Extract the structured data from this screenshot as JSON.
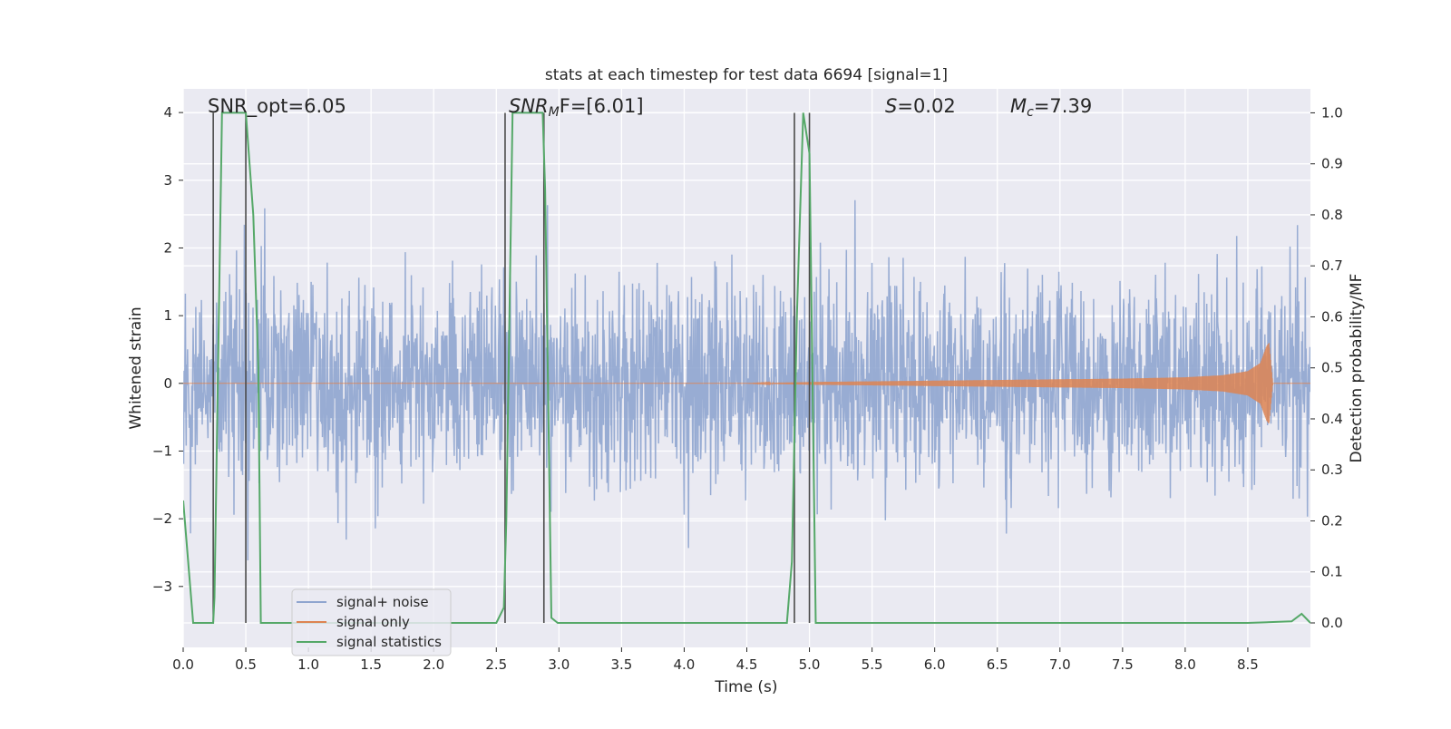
{
  "chart_data": {
    "type": "line",
    "title": "stats at each timestep for test data 6694 [signal=1]",
    "xlabel": "Time (s)",
    "ylabel": "Whitened strain",
    "y2label": "Detection probability/MF",
    "xlim": [
      0.0,
      9.0
    ],
    "ylim": [
      -3.9,
      4.35
    ],
    "y2lim": [
      -0.048,
      1.047
    ],
    "xticks": [
      "0.0",
      "0.5",
      "1.0",
      "1.5",
      "2.0",
      "2.5",
      "3.0",
      "3.5",
      "4.0",
      "4.5",
      "5.0",
      "5.5",
      "6.0",
      "6.5",
      "7.0",
      "7.5",
      "8.0",
      "8.5"
    ],
    "yticks": [
      "4",
      "3",
      "2",
      "1",
      "0",
      "−1",
      "−2",
      "−3"
    ],
    "y2ticks": [
      "1.0",
      "0.9",
      "0.8",
      "0.7",
      "0.6",
      "0.5",
      "0.4",
      "0.3",
      "0.2",
      "0.1",
      "0.0"
    ],
    "grid": true,
    "legend_position": "lower-left",
    "annotations": {
      "snr_opt": "SNR_opt=6.05",
      "snr_mf_italic": "SNR",
      "snr_mf_sub": "M",
      "snr_mf_rest": "F=[6.01]",
      "s_var": "S",
      "s_value": "=0.02",
      "mc_var": "M",
      "mc_sub": "c",
      "mc_value": "=7.39"
    },
    "series": [
      {
        "name": "signal+ noise",
        "color": "#8fa5cf",
        "noise_amplitude_std": 0.75,
        "range": [
          -3.6,
          4.0
        ]
      },
      {
        "name": "signal only",
        "color": "#dd8452",
        "envelope": {
          "t": [
            0.0,
            4.5,
            5.0,
            5.5,
            6.0,
            6.5,
            7.0,
            7.5,
            8.0,
            8.3,
            8.5,
            8.6,
            8.65,
            8.67,
            8.7,
            9.0
          ],
          "amp": [
            0.0,
            0.0,
            0.02,
            0.03,
            0.04,
            0.05,
            0.06,
            0.07,
            0.09,
            0.12,
            0.18,
            0.3,
            0.55,
            0.6,
            0.0,
            0.0
          ]
        }
      },
      {
        "name": "signal statistics",
        "color": "#55a868",
        "x": [
          0.0,
          0.08,
          0.24,
          0.25,
          0.31,
          0.5,
          0.56,
          0.6,
          0.62,
          0.8,
          2.0,
          2.5,
          2.56,
          2.58,
          2.63,
          2.87,
          2.89,
          2.94,
          2.99,
          3.5,
          4.5,
          4.82,
          4.86,
          4.9,
          4.95,
          5.0,
          5.05,
          5.5,
          7.0,
          8.5,
          8.85,
          8.93,
          9.0
        ],
        "y": [
          0.24,
          0.0,
          0.0,
          0.05,
          1.0,
          1.0,
          0.8,
          0.5,
          0.0,
          0.0,
          0.0,
          0.0,
          0.03,
          0.2,
          1.0,
          1.0,
          0.85,
          0.01,
          0.0,
          0.0,
          0.0,
          0.0,
          0.12,
          0.6,
          1.0,
          0.92,
          0.0,
          0.0,
          0.0,
          0.0,
          0.003,
          0.018,
          0.0
        ]
      }
    ],
    "vertical_markers": [
      0.24,
      0.5,
      2.57,
      2.88,
      4.88,
      5.0
    ]
  }
}
